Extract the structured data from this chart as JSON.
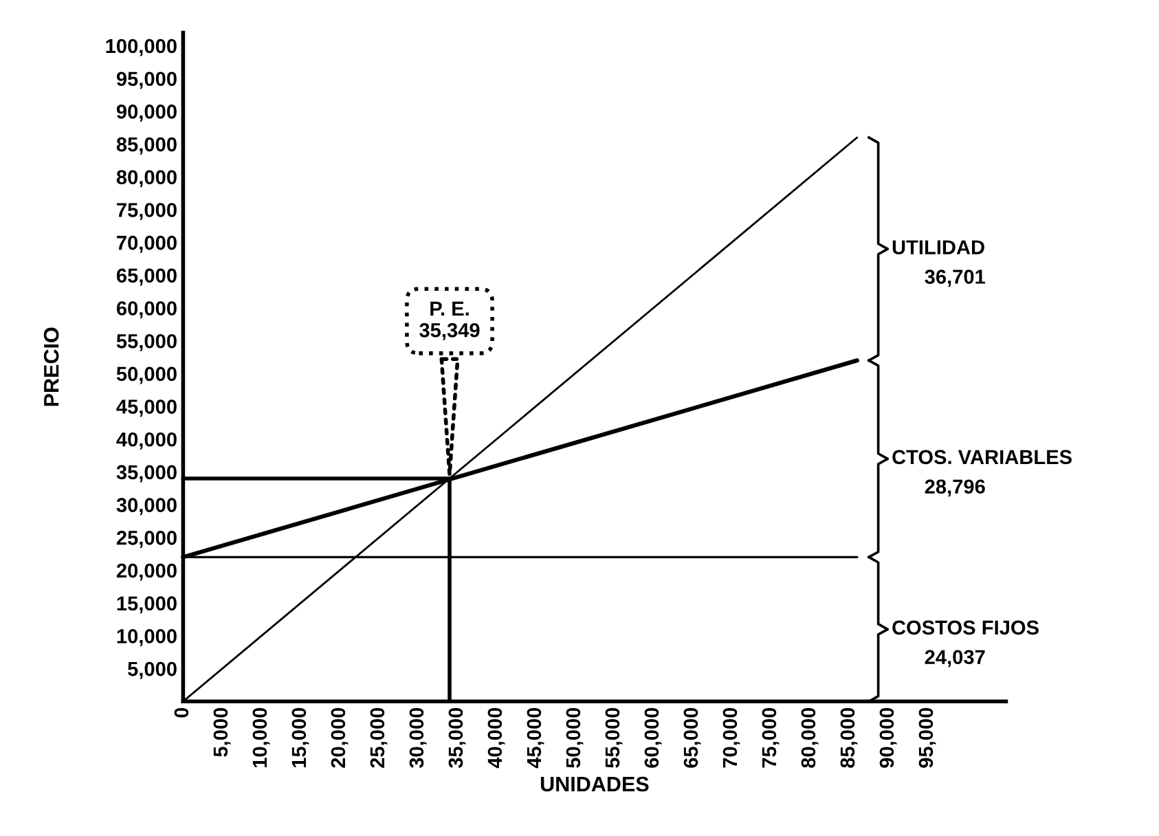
{
  "chart_data": {
    "type": "line",
    "xlabel": "UNIDADES",
    "ylabel": "PRECIO",
    "xlim": [
      0,
      105000
    ],
    "ylim": [
      0,
      102000
    ],
    "xticks": [
      0,
      {
        "value": 5000,
        "label": "5,000"
      },
      {
        "value": 10000,
        "label": "10,000"
      },
      {
        "value": 15000,
        "label": "15,000"
      },
      {
        "value": 20000,
        "label": "20,000"
      },
      {
        "value": 25000,
        "label": "25,000"
      },
      {
        "value": 30000,
        "label": "30,000"
      },
      {
        "value": 35000,
        "label": "35,000"
      },
      {
        "value": 40000,
        "label": "40,000"
      },
      {
        "value": 45000,
        "label": "45,000"
      },
      {
        "value": 50000,
        "label": "50,000"
      },
      {
        "value": 55000,
        "label": "55,000"
      },
      {
        "value": 60000,
        "label": "60,000"
      },
      {
        "value": 65000,
        "label": "65,000"
      },
      {
        "value": 70000,
        "label": "70,000"
      },
      {
        "value": 75000,
        "label": "75,000"
      },
      {
        "value": 80000,
        "label": "80,000"
      },
      {
        "value": 85000,
        "label": "85,000"
      },
      {
        "value": 90000,
        "label": "90,000"
      },
      {
        "value": 95000,
        "label": "95,000"
      }
    ],
    "yticks": [
      {
        "value": 5000,
        "label": "5,000"
      },
      {
        "value": 10000,
        "label": "10,000"
      },
      {
        "value": 15000,
        "label": "15,000"
      },
      {
        "value": 20000,
        "label": "20,000"
      },
      {
        "value": 25000,
        "label": "25,000"
      },
      {
        "value": 30000,
        "label": "30,000"
      },
      {
        "value": 35000,
        "label": "35,000"
      },
      {
        "value": 40000,
        "label": "40,000"
      },
      {
        "value": 45000,
        "label": "45,000"
      },
      {
        "value": 50000,
        "label": "50,000"
      },
      {
        "value": 55000,
        "label": "55,000"
      },
      {
        "value": 60000,
        "label": "60,000"
      },
      {
        "value": 65000,
        "label": "65,000"
      },
      {
        "value": 70000,
        "label": "70,000"
      },
      {
        "value": 75000,
        "label": "75,000"
      },
      {
        "value": 80000,
        "label": "80,000"
      },
      {
        "value": 85000,
        "label": "85,000"
      },
      {
        "value": 90000,
        "label": "90,000"
      },
      {
        "value": 95000,
        "label": "95,000"
      },
      {
        "value": 100000,
        "label": "100,000"
      }
    ],
    "series": [
      {
        "color": "#000000",
        "x": [
          0,
          86000
        ],
        "values": [
          0,
          86000
        ]
      },
      {
        "color": "#000000",
        "x": [
          0,
          86000
        ],
        "values": [
          22000,
          52000
        ]
      },
      {
        "color": "#000000",
        "x": [
          0,
          86000
        ],
        "values": [
          22000,
          22000
        ]
      },
      {
        "color": "#000000",
        "x": [
          34000,
          34000
        ],
        "values": [
          0,
          34000
        ]
      },
      {
        "color": "#000000",
        "x": [
          0,
          34000
        ],
        "values": [
          34000,
          34000
        ]
      }
    ],
    "annotations": [
      {
        "text": "P. E.\n35,349",
        "x": 34000,
        "y": 34000
      },
      "UTILIDAD",
      "36,701",
      "CTOS. VARIABLES",
      "28,796",
      "COSTOS FIJOS",
      "24,037"
    ],
    "grid": false,
    "legend": false,
    "marker": "none",
    "line_style": "solid"
  }
}
